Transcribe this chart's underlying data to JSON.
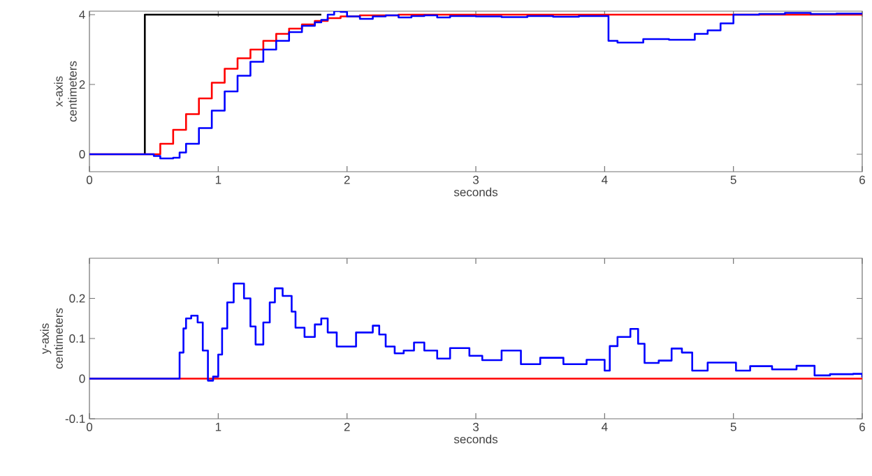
{
  "chart_data": [
    {
      "type": "step",
      "xlabel": "seconds",
      "ylabel": "x-axis centimeters",
      "xlim": [
        0,
        6
      ],
      "ylim": [
        -0.5,
        4.1
      ],
      "xticks": [
        0,
        1,
        2,
        3,
        4,
        5,
        6
      ],
      "yticks": [
        0,
        2,
        4
      ],
      "series": [
        {
          "color": "#000000",
          "x": [
            0.43,
            0.43,
            1.8
          ],
          "values": [
            0,
            4,
            4
          ]
        },
        {
          "color": "#ff0000",
          "x": [
            0,
            0.45,
            0.55,
            0.65,
            0.75,
            0.85,
            0.95,
            1.05,
            1.15,
            1.25,
            1.35,
            1.45,
            1.55,
            1.65,
            1.75,
            1.85,
            1.95,
            2.1,
            2.4,
            6
          ],
          "values": [
            0,
            0,
            0.3,
            0.7,
            1.15,
            1.6,
            2.05,
            2.45,
            2.75,
            3.0,
            3.25,
            3.45,
            3.6,
            3.72,
            3.82,
            3.9,
            3.95,
            3.98,
            4.0,
            4.0
          ]
        },
        {
          "color": "#0000ff",
          "x": [
            0,
            0.45,
            0.5,
            0.55,
            0.65,
            0.7,
            0.75,
            0.85,
            0.95,
            1.05,
            1.15,
            1.25,
            1.35,
            1.45,
            1.55,
            1.65,
            1.75,
            1.8,
            1.85,
            1.9,
            1.95,
            2.0,
            2.1,
            2.2,
            2.3,
            2.4,
            2.5,
            2.6,
            2.7,
            2.8,
            3.0,
            3.2,
            3.4,
            3.6,
            3.8,
            4.03,
            4.1,
            4.3,
            4.5,
            4.7,
            4.8,
            4.9,
            5.0,
            5.2,
            5.4,
            5.6,
            5.8,
            6
          ],
          "values": [
            0,
            0,
            -0.05,
            -0.12,
            -0.1,
            0.05,
            0.3,
            0.75,
            1.25,
            1.8,
            2.25,
            2.65,
            3.0,
            3.25,
            3.5,
            3.68,
            3.78,
            3.85,
            4.0,
            4.1,
            4.08,
            3.95,
            3.88,
            3.95,
            3.98,
            3.92,
            3.96,
            3.98,
            3.92,
            3.96,
            3.95,
            3.93,
            3.96,
            3.94,
            3.96,
            3.25,
            3.2,
            3.3,
            3.28,
            3.45,
            3.55,
            3.75,
            4.0,
            4.02,
            4.05,
            4.02,
            4.03,
            4.02
          ]
        }
      ]
    },
    {
      "type": "step",
      "xlabel": "seconds",
      "ylabel": "y-axis centimeters",
      "xlim": [
        0,
        6
      ],
      "ylim": [
        -0.1,
        0.3
      ],
      "xticks": [
        0,
        1,
        2,
        3,
        4,
        5,
        6
      ],
      "yticks": [
        -0.1,
        0,
        0.1,
        0.2
      ],
      "series": [
        {
          "color": "#ff0000",
          "x": [
            0,
            6
          ],
          "values": [
            0,
            0
          ]
        },
        {
          "color": "#0000ff",
          "x": [
            0,
            0.7,
            0.73,
            0.75,
            0.79,
            0.84,
            0.88,
            0.92,
            0.96,
            1.0,
            1.03,
            1.07,
            1.12,
            1.2,
            1.25,
            1.29,
            1.35,
            1.4,
            1.44,
            1.5,
            1.57,
            1.6,
            1.67,
            1.75,
            1.8,
            1.85,
            1.92,
            2.0,
            2.07,
            2.2,
            2.25,
            2.3,
            2.37,
            2.44,
            2.52,
            2.6,
            2.7,
            2.8,
            2.95,
            3.05,
            3.2,
            3.35,
            3.5,
            3.68,
            3.86,
            4.0,
            4.04,
            4.1,
            4.2,
            4.26,
            4.31,
            4.42,
            4.52,
            4.6,
            4.68,
            4.8,
            5.02,
            5.13,
            5.3,
            5.49,
            5.63,
            5.75,
            5.93,
            6
          ],
          "values": [
            0,
            0.065,
            0.125,
            0.15,
            0.157,
            0.14,
            0.07,
            -0.005,
            0.005,
            0.06,
            0.125,
            0.19,
            0.237,
            0.2,
            0.13,
            0.085,
            0.14,
            0.19,
            0.225,
            0.206,
            0.167,
            0.127,
            0.104,
            0.135,
            0.15,
            0.115,
            0.08,
            0.08,
            0.115,
            0.132,
            0.11,
            0.08,
            0.063,
            0.07,
            0.09,
            0.07,
            0.05,
            0.076,
            0.057,
            0.046,
            0.07,
            0.036,
            0.052,
            0.036,
            0.047,
            0.02,
            0.081,
            0.104,
            0.124,
            0.087,
            0.039,
            0.045,
            0.075,
            0.065,
            0.02,
            0.04,
            0.02,
            0.031,
            0.023,
            0.032,
            0.008,
            0.011,
            0.012,
            0.003
          ]
        }
      ]
    }
  ]
}
